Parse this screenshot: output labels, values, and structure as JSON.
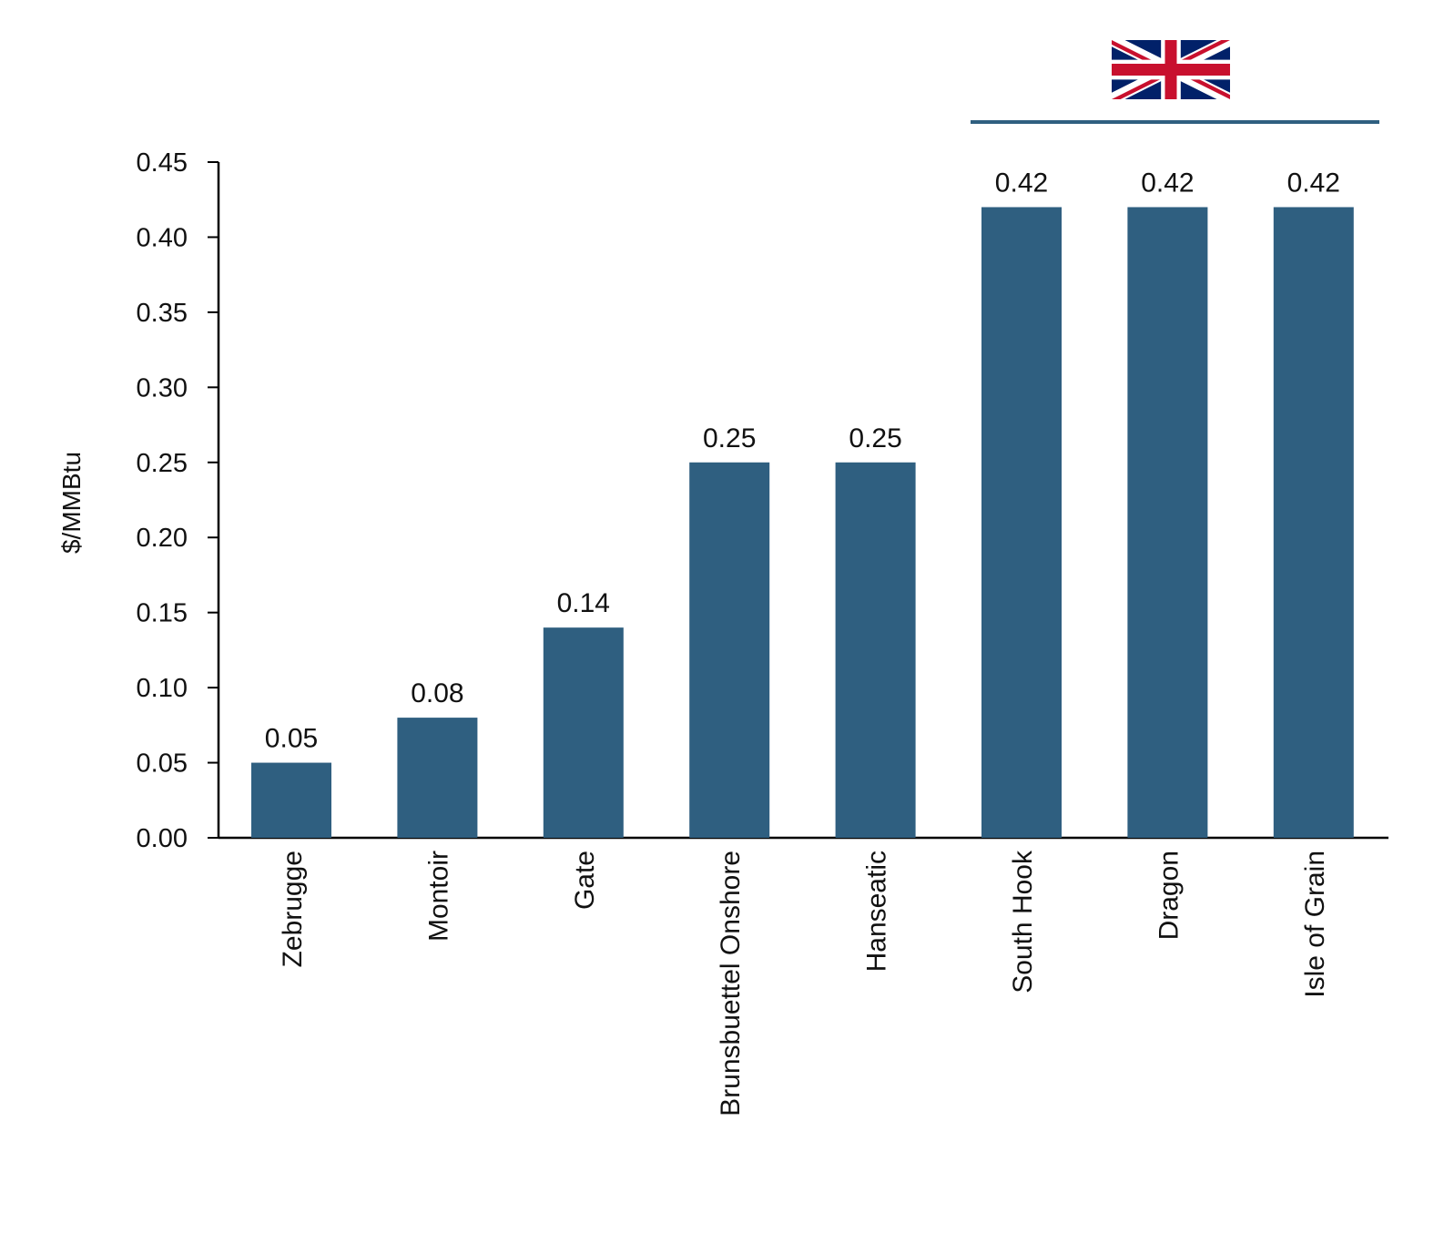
{
  "chart_data": {
    "type": "bar",
    "categories": [
      "Zebrugge",
      "Montoir",
      "Gate",
      "Brunsbuettel Onshore",
      "Hanseatic",
      "South Hook",
      "Dragon",
      "Isle of Grain"
    ],
    "values": [
      0.05,
      0.08,
      0.14,
      0.25,
      0.25,
      0.42,
      0.42,
      0.42
    ],
    "data_labels": [
      "0.05",
      "0.08",
      "0.14",
      "0.25",
      "0.25",
      "0.42",
      "0.42",
      "0.42"
    ],
    "ylabel": "$/MMBtu",
    "ylim": [
      0,
      0.45
    ],
    "yticks": [
      "0.00",
      "0.05",
      "0.10",
      "0.15",
      "0.20",
      "0.25",
      "0.30",
      "0.35",
      "0.40",
      "0.45"
    ],
    "grid": false,
    "bar_color": "#2f5f80",
    "group_marker": {
      "icon": "uk-flag-icon",
      "covers_categories": [
        "South Hook",
        "Dragon",
        "Isle of Grain"
      ],
      "line_color": "#2f5f80"
    }
  }
}
